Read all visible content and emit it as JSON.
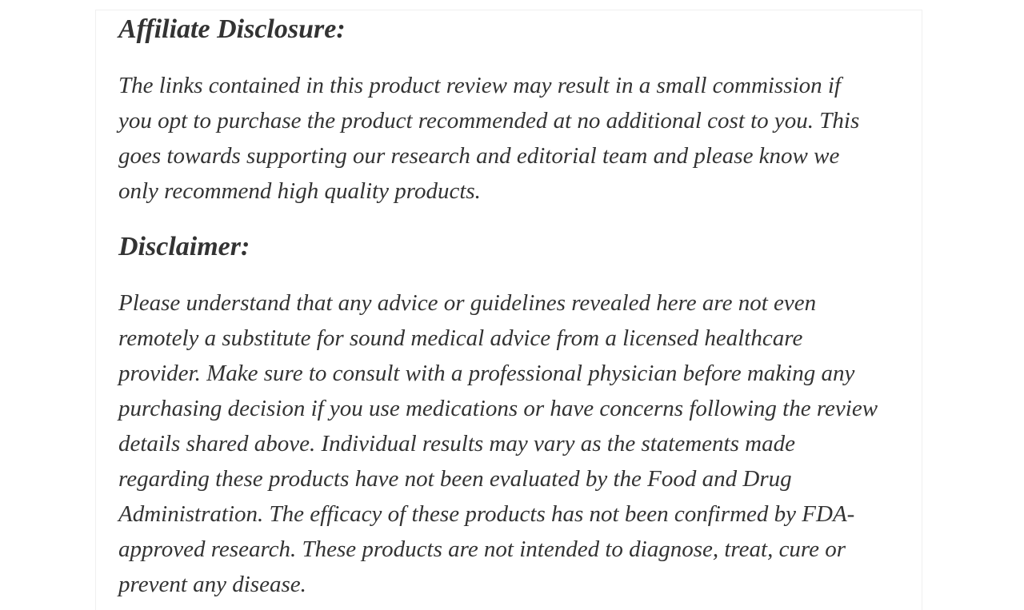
{
  "theme": {
    "text_color": "#333333",
    "card_border_color": "#f0f0f0",
    "page_background": "#ffffff"
  },
  "content": {
    "affiliate": {
      "heading": "Affiliate Disclosure:",
      "paragraph": "The links contained in this product review may result in a small commission if\nyou opt to purchase the product recommended at no additional cost to you. This\ngoes towards supporting our research and editorial team and please know we\nonly recommend high quality products."
    },
    "disclaimer": {
      "heading": "Disclaimer:",
      "paragraph": "Please understand that any advice or guidelines revealed here are not even\nremotely a substitute for sound medical advice from a licensed healthcare\nprovider. Make sure to consult with a professional physician before making any\npurchasing decision if you use medications or have concerns following the review\ndetails shared above. Individual results may vary as the statements made\nregarding these products have not been evaluated by the Food and Drug\nAdministration. The efficacy of these products has not been confirmed by FDA-\napproved research. These products are not intended to diagnose, treat, cure or\nprevent any disease."
    }
  }
}
